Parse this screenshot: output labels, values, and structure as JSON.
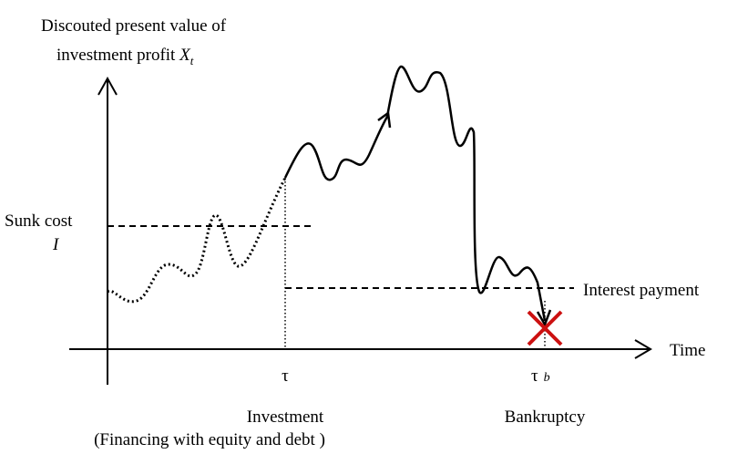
{
  "y_axis_label": {
    "line1": "Discouted present value of",
    "line2": "investment profit ",
    "symbol": "X",
    "subscript": "t"
  },
  "sunk_cost": {
    "label": "Sunk cost",
    "symbol": "I"
  },
  "interest_payment": "Interest payment",
  "x_axis_label": "Time",
  "investment": {
    "symbol": "τ",
    "label": "Investment",
    "note": "(Financing with equity and debt )"
  },
  "bankruptcy": {
    "symbol": "τ",
    "subscript": "b",
    "label": "Bankruptcy"
  }
}
